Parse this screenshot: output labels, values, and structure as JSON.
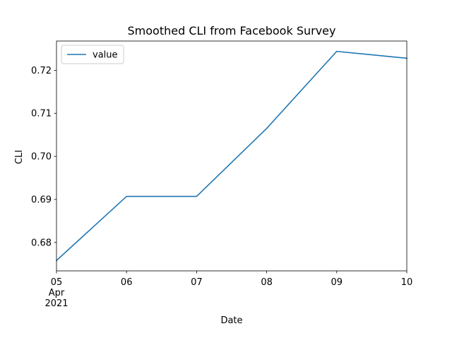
{
  "chart_data": {
    "type": "line",
    "title": "Smoothed CLI from Facebook Survey",
    "xlabel": "Date",
    "ylabel": "CLI",
    "x": [
      "2021-04-05",
      "2021-04-06",
      "2021-04-07",
      "2021-04-08",
      "2021-04-09",
      "2021-04-10"
    ],
    "series": [
      {
        "name": "value",
        "color": "#1f77b4",
        "values": [
          0.6758,
          0.6907,
          0.6907,
          0.7065,
          0.7244,
          0.7228
        ]
      }
    ],
    "ylim": [
      0.6734,
      0.7268
    ],
    "xlim": [
      "2021-04-05",
      "2021-04-10"
    ],
    "x_ticks": [
      {
        "lines": [
          "05",
          "Apr",
          "2021"
        ]
      },
      {
        "lines": [
          "06"
        ]
      },
      {
        "lines": [
          "07"
        ]
      },
      {
        "lines": [
          "08"
        ]
      },
      {
        "lines": [
          "09"
        ]
      },
      {
        "lines": [
          "10"
        ]
      }
    ],
    "y_ticks": [
      {
        "value": 0.68,
        "label": "0.68"
      },
      {
        "value": 0.69,
        "label": "0.69"
      },
      {
        "value": 0.7,
        "label": "0.70"
      },
      {
        "value": 0.71,
        "label": "0.71"
      },
      {
        "value": 0.72,
        "label": "0.72"
      }
    ],
    "legend": {
      "position": "top-left",
      "entries": [
        "value"
      ]
    },
    "grid": false
  }
}
